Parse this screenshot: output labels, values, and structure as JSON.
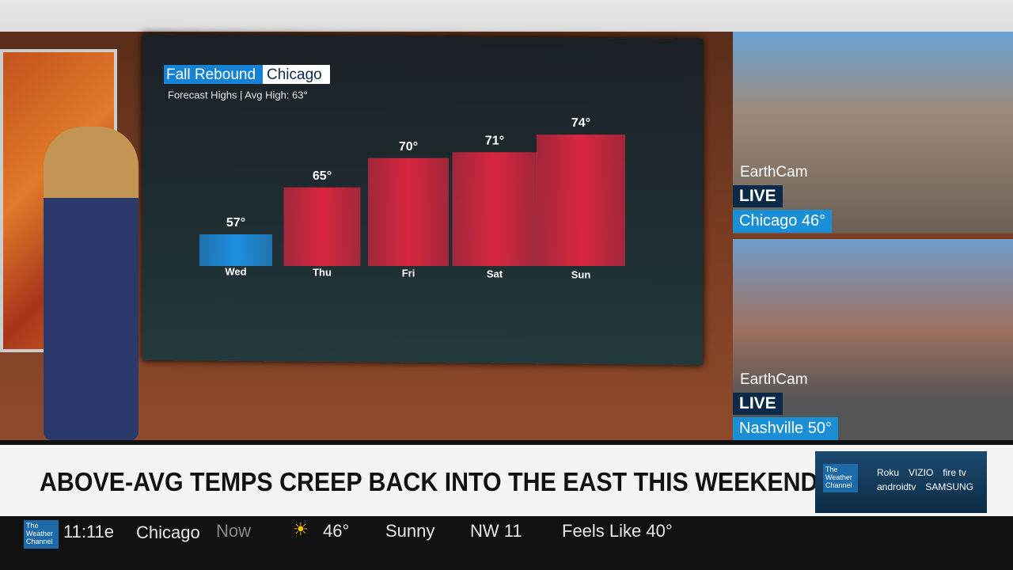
{
  "chart_data": {
    "type": "bar",
    "title": "Fall Rebound",
    "location": "Chicago",
    "subtitle": "Forecast Highs | Avg High:  63°",
    "categories": [
      "Wed",
      "Thu",
      "Fri",
      "Sat",
      "Sun"
    ],
    "values": [
      57,
      65,
      70,
      71,
      74
    ],
    "value_labels": [
      "57°",
      "65°",
      "70°",
      "71°",
      "74°"
    ],
    "colors": [
      "#1e8fe0",
      "#d8263f",
      "#d8263f",
      "#d8263f",
      "#d8263f"
    ]
  },
  "cameras": [
    {
      "source": "EarthCam",
      "status": "LIVE",
      "label": "Chicago 46°"
    },
    {
      "source": "EarthCam",
      "status": "LIVE",
      "label": "Nashville 50°"
    }
  ],
  "headline": "ABOVE-AVG TEMPS CREEP BACK INTO THE EAST THIS WEEKEND",
  "partner_logo": "The Weather Channel",
  "partners": [
    "Roku",
    "VIZIO",
    "fire tv",
    "androidtv",
    "SAMSUNG"
  ],
  "ticker": {
    "logo": "The Weather Channel",
    "time": "11:11e",
    "city": "Chicago",
    "period": "Now",
    "temperature": "46°",
    "condition": "Sunny",
    "wind": "NW 11",
    "feels_like": "Feels Like 40°"
  }
}
